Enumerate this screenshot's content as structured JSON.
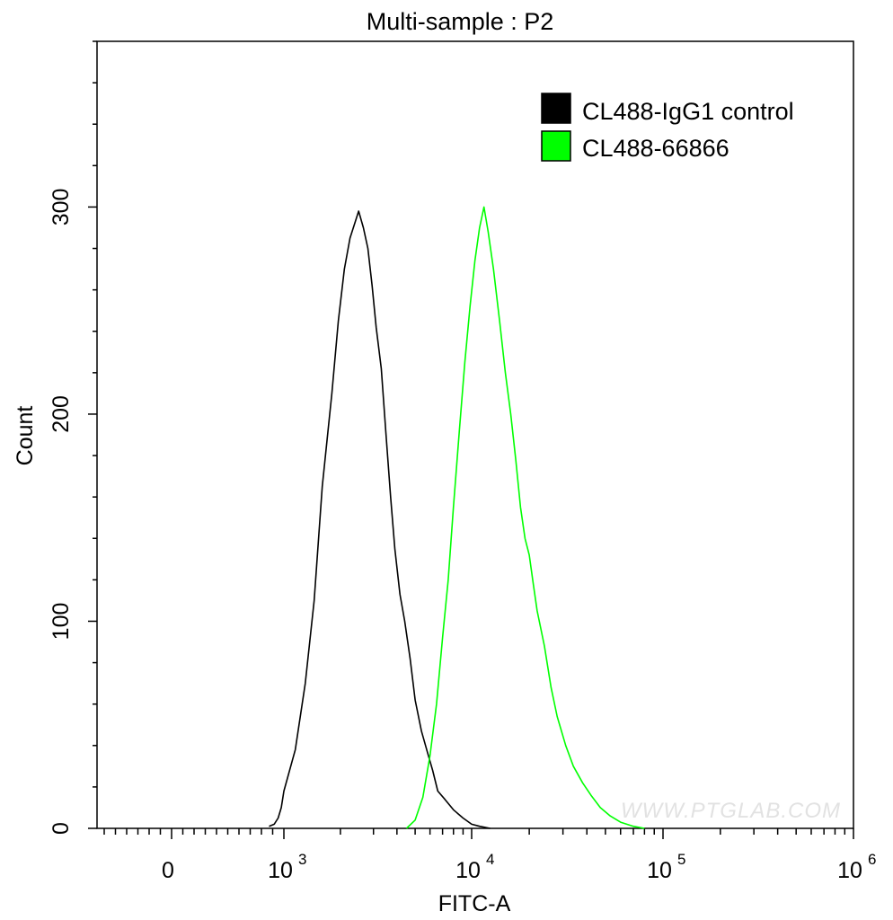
{
  "chart_data": {
    "type": "line",
    "title": "Multi-sample : P2",
    "xlabel": "FITC-A",
    "ylabel": "Count",
    "xscale": "biexponential (log above 10^3)",
    "ylim": [
      0,
      380
    ],
    "y_ticks": [
      0,
      100,
      200,
      300
    ],
    "y_tick_labels": [
      "0",
      "100",
      "200",
      "300"
    ],
    "x_tick_labels": [
      {
        "base": "0",
        "exp": ""
      },
      {
        "base": "10",
        "exp": "3"
      },
      {
        "base": "10",
        "exp": "4"
      },
      {
        "base": "10",
        "exp": "5"
      },
      {
        "base": "10",
        "exp": "6"
      }
    ],
    "legend_position": "top-right",
    "series": [
      {
        "name": "CL488-IgG1 control",
        "color": "#000000",
        "x": [
          400,
          550,
          700,
          850,
          1000,
          1150,
          1300,
          1450,
          1600,
          1800,
          1950,
          2100,
          2250,
          2400,
          2500,
          2650,
          2800,
          2950,
          3100,
          3300,
          3500,
          3700,
          3900,
          4150,
          4400,
          4700,
          5000,
          5400,
          5800,
          6200,
          6600,
          7200,
          8000,
          9000,
          10000,
          11000,
          12500
        ],
        "values": [
          1,
          2,
          5,
          10,
          18,
          38,
          70,
          110,
          165,
          210,
          245,
          270,
          285,
          293,
          298,
          290,
          280,
          262,
          242,
          222,
          190,
          160,
          135,
          113,
          100,
          82,
          62,
          47,
          37,
          28,
          18,
          14,
          9,
          5,
          2,
          1,
          0
        ]
      },
      {
        "name": "CL488-66866",
        "color": "#00ff00",
        "x": [
          4500,
          5000,
          5500,
          6000,
          6500,
          7000,
          7500,
          8000,
          8600,
          9200,
          9800,
          10400,
          11000,
          11600,
          12200,
          13000,
          14000,
          15000,
          16000,
          17000,
          18000,
          19000,
          20000,
          21000,
          22000,
          24000,
          26000,
          28000,
          31000,
          34000,
          38000,
          42000,
          47000,
          53000,
          60000,
          70000,
          80000
        ],
        "values": [
          0,
          4,
          15,
          35,
          60,
          92,
          120,
          155,
          192,
          225,
          252,
          274,
          290,
          300,
          288,
          270,
          245,
          220,
          200,
          178,
          155,
          140,
          132,
          118,
          105,
          88,
          68,
          54,
          40,
          30,
          22,
          16,
          10,
          6,
          3,
          1,
          0
        ]
      }
    ]
  },
  "watermark": "WWW.PTGLAB.COM"
}
